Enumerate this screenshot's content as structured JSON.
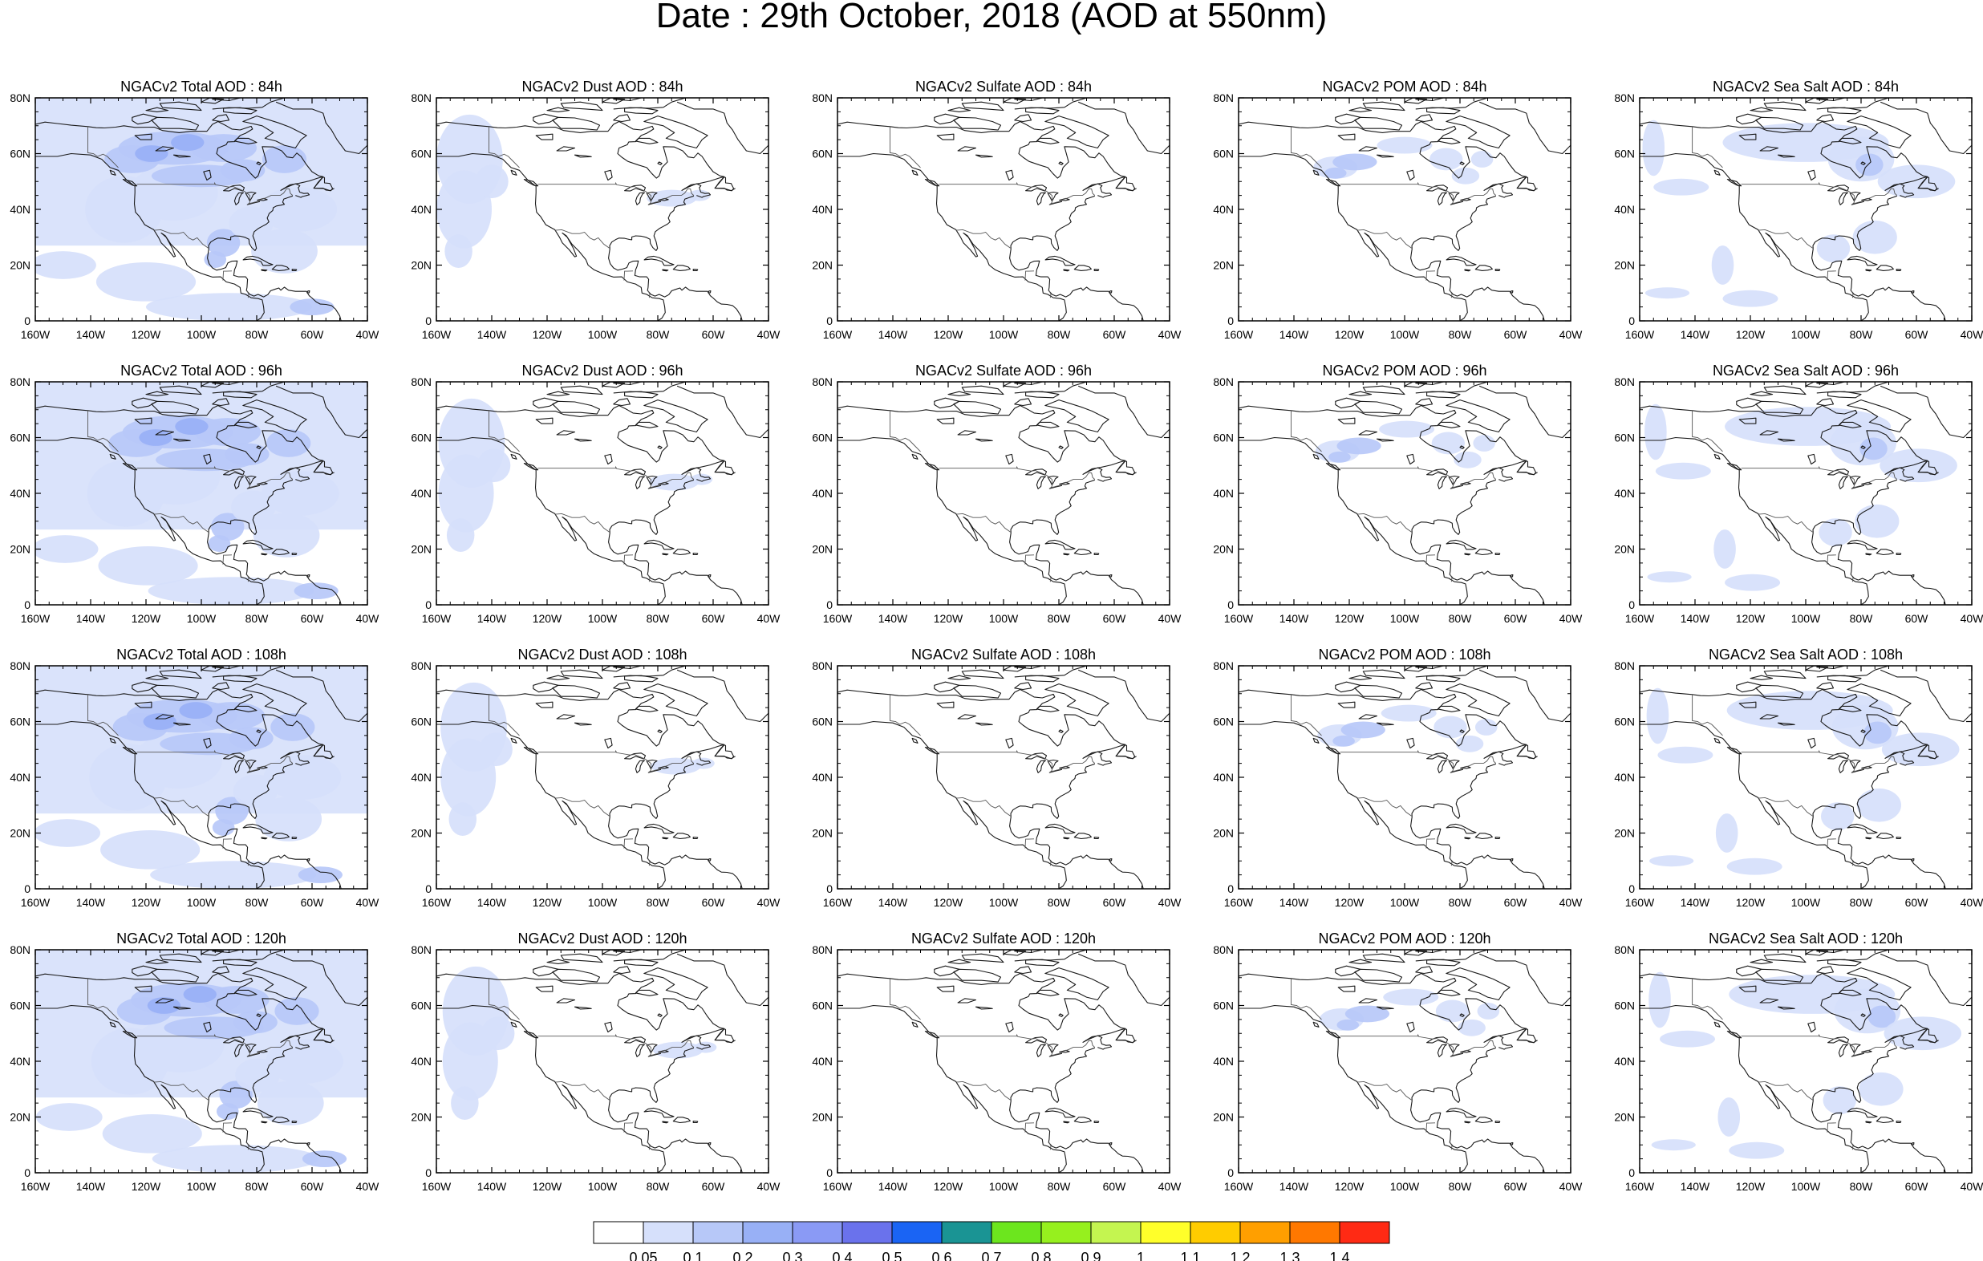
{
  "figure": {
    "title": "Date : 29th October, 2018 (AOD at 550nm)",
    "lat_ticks": [
      "0",
      "20N",
      "40N",
      "60N",
      "80N"
    ],
    "lon_ticks": [
      "160W",
      "140W",
      "120W",
      "100W",
      "80W",
      "60W",
      "40W"
    ],
    "lon_range": [
      -160,
      -40
    ],
    "lat_range": [
      0,
      80
    ],
    "rows": [
      {
        "lead": "84h",
        "panels": [
          "NGACv2 Total AOD : 84h",
          "NGACv2 Dust AOD : 84h",
          "NGACv2 Sulfate AOD : 84h",
          "NGACv2 POM AOD : 84h",
          "NGACv2 Sea Salt AOD : 84h"
        ]
      },
      {
        "lead": "96h",
        "panels": [
          "NGACv2 Total AOD : 96h",
          "NGACv2 Dust AOD : 96h",
          "NGACv2 Sulfate AOD : 96h",
          "NGACv2 POM AOD : 96h",
          "NGACv2 Sea Salt AOD : 96h"
        ]
      },
      {
        "lead": "108h",
        "panels": [
          "NGACv2 Total AOD : 108h",
          "NGACv2 Dust AOD : 108h",
          "NGACv2 Sulfate AOD : 108h",
          "NGACv2 POM AOD : 108h",
          "NGACv2 Sea Salt AOD : 108h"
        ]
      },
      {
        "lead": "120h",
        "panels": [
          "NGACv2 Total AOD : 120h",
          "NGACv2 Dust AOD : 120h",
          "NGACv2 Sulfate AOD : 120h",
          "NGACv2 POM AOD : 120h",
          "NGACv2 Sea Salt  AOD : 120h"
        ]
      }
    ],
    "colorbar": {
      "labels": [
        "0.05",
        "0.1",
        "0.2",
        "0.3",
        "0.4",
        "0.5",
        "0.6",
        "0.7",
        "0.8",
        "0.9",
        "1",
        "1.1",
        "1.2",
        "1.3",
        "1.4"
      ],
      "colors": [
        "#ffffff",
        "#d6e0fb",
        "#b7c8f8",
        "#98b0f6",
        "#8a9af5",
        "#6a72ec",
        "#1a64f4",
        "#1a9494",
        "#6ce61e",
        "#96f01e",
        "#c4f550",
        "#ffff2a",
        "#ffcc00",
        "#ff9f00",
        "#ff7800",
        "#ff2a14"
      ]
    },
    "colors": {
      "light_blue": "#d6e0fb",
      "medium_blue": "#b7c8f8",
      "darker_blue": "#98b0f6",
      "coast": "#1a1a1a",
      "border": "#555555"
    }
  }
}
